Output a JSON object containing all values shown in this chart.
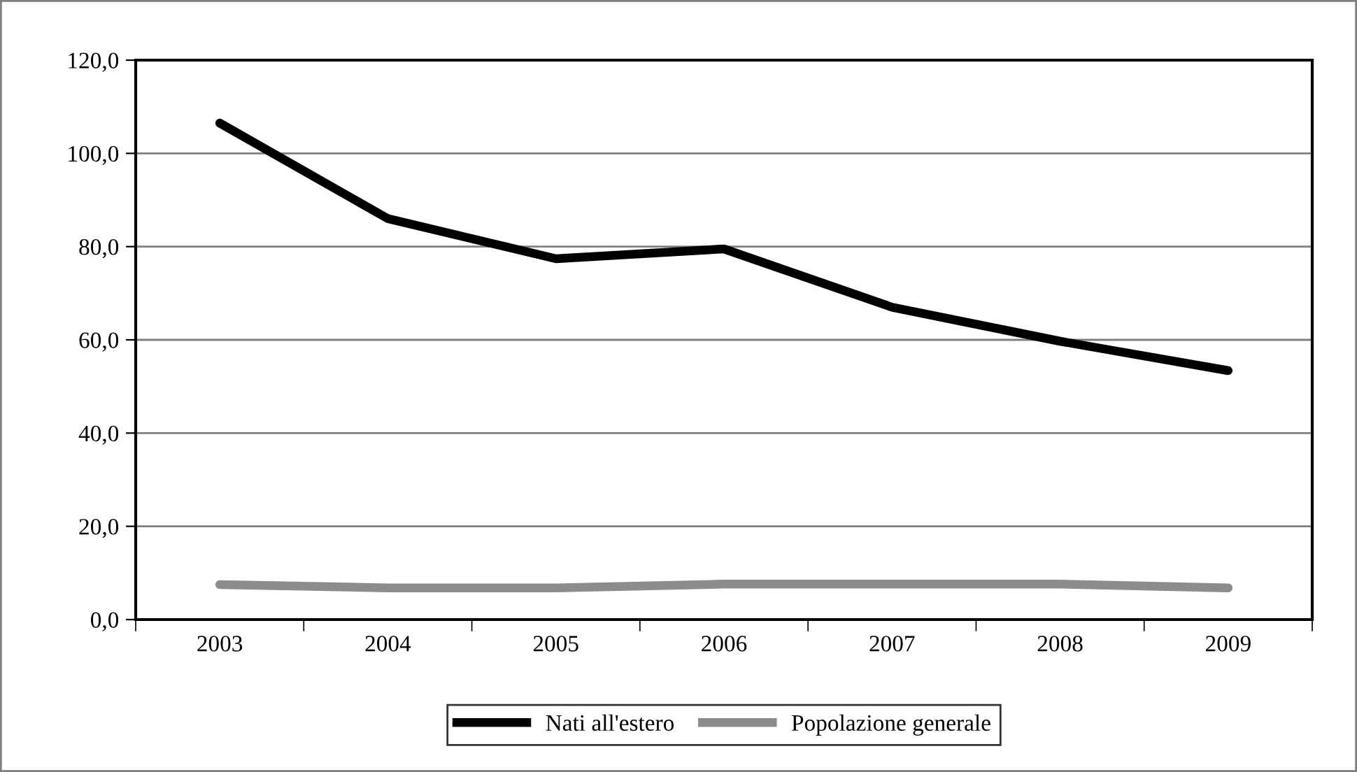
{
  "chart_data": {
    "type": "line",
    "categories": [
      "2003",
      "2004",
      "2005",
      "2006",
      "2007",
      "2008",
      "2009"
    ],
    "series": [
      {
        "name": "Nati all'estero",
        "color": "#000000",
        "values": [
          106.5,
          86.0,
          77.4,
          79.5,
          67.0,
          59.7,
          53.4
        ]
      },
      {
        "name": "Popolazione generale",
        "color": "#8c8c8c",
        "values": [
          7.5,
          6.8,
          6.8,
          7.6,
          7.6,
          7.6,
          6.8
        ]
      }
    ],
    "ylim": [
      0,
      120
    ],
    "yticks": [
      {
        "value": 0,
        "label": "0,0"
      },
      {
        "value": 20,
        "label": "20,0"
      },
      {
        "value": 40,
        "label": "40,0"
      },
      {
        "value": 60,
        "label": "60,0"
      },
      {
        "value": 80,
        "label": "80,0"
      },
      {
        "value": 100,
        "label": "100,0"
      },
      {
        "value": 120,
        "label": "120,0"
      }
    ],
    "grid": "y",
    "legend": "bottom",
    "marker": "none",
    "line_style": "solid"
  }
}
